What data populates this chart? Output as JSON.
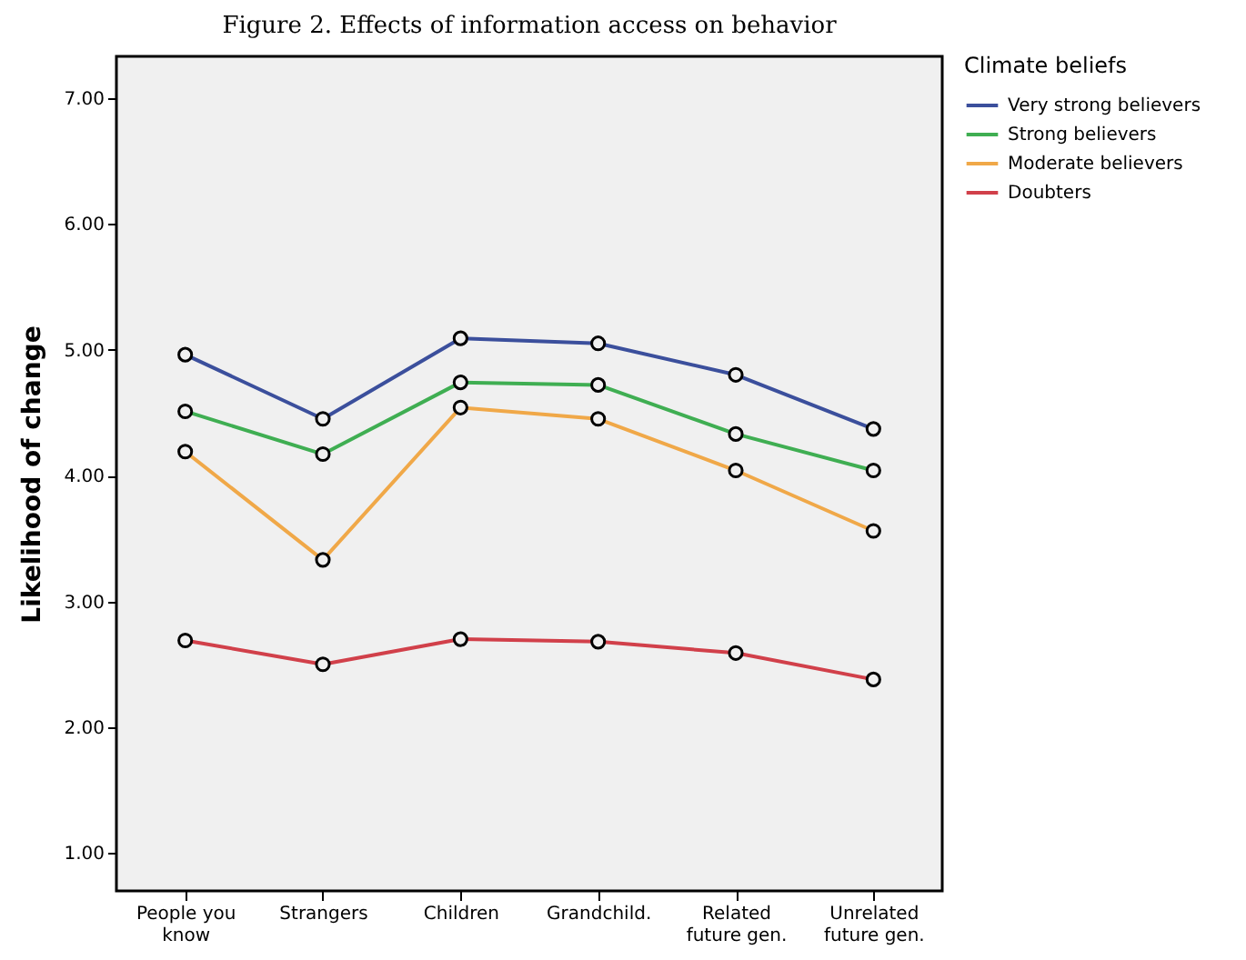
{
  "chart_data": {
    "type": "line",
    "title": "Figure 2. Effects of information access on behavior",
    "ylabel": "Likelihood of change",
    "legend_title": "Climate beliefs",
    "categories": [
      "People you know",
      "Strangers",
      "Children",
      "Grandchild.",
      "Related future gen.",
      "Unrelated future gen."
    ],
    "series": [
      {
        "name": "Very strong believers",
        "color": "#3b4f9c",
        "values": [
          4.96,
          4.45,
          5.09,
          5.05,
          4.8,
          4.37
        ]
      },
      {
        "name": "Strong believers",
        "color": "#3fae52",
        "values": [
          4.51,
          4.17,
          4.74,
          4.72,
          4.33,
          4.04
        ]
      },
      {
        "name": "Moderate believers",
        "color": "#f0a848",
        "values": [
          4.19,
          3.33,
          4.54,
          4.45,
          4.04,
          3.56
        ]
      },
      {
        "name": "Doubters",
        "color": "#d1404a",
        "values": [
          2.69,
          2.5,
          2.7,
          2.68,
          2.59,
          2.38
        ]
      }
    ],
    "ylim": [
      0.7,
      7.33
    ],
    "yticks": [
      {
        "value": 1,
        "label": "1.00"
      },
      {
        "value": 2,
        "label": "2.00"
      },
      {
        "value": 3,
        "label": "3.00"
      },
      {
        "value": 4,
        "label": "4.00"
      },
      {
        "value": 5,
        "label": "5.00"
      },
      {
        "value": 6,
        "label": "6.00"
      },
      {
        "value": 7,
        "label": "7.00"
      }
    ],
    "grid": false,
    "legend": "top right",
    "marker": "circle",
    "line_style": "solid"
  }
}
